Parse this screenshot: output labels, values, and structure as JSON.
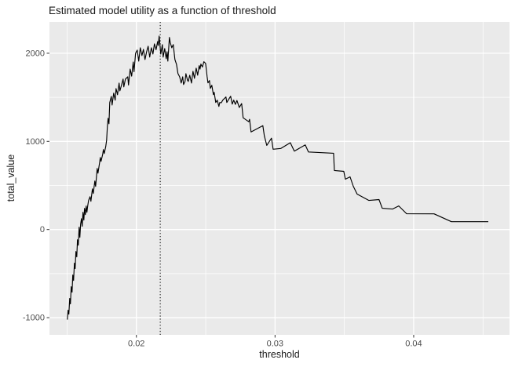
{
  "chart_data": {
    "type": "line",
    "title": "Estimated model utility as a function of threshold",
    "xlabel": "threshold",
    "ylabel": "total_value",
    "xlim": [
      0.01373,
      0.04691
    ],
    "ylim": [
      -1195,
      2355
    ],
    "x_major_ticks": [
      0.02,
      0.03,
      0.04
    ],
    "x_tick_labels": [
      "0.02",
      "0.03",
      "0.04"
    ],
    "x_minor_ticks": [
      0.015,
      0.025,
      0.035,
      0.045
    ],
    "y_major_ticks": [
      -1000,
      0,
      1000,
      2000
    ],
    "y_tick_labels": [
      "-1000",
      "0",
      "1000",
      "2000"
    ],
    "y_minor_ticks": [
      -500,
      500,
      1500
    ],
    "grid": true,
    "legend_position": "none",
    "vline": {
      "x": 0.02172,
      "style": "dotted"
    },
    "colors": {
      "panel_bg": "#EAEAEA",
      "grid": "#FFFFFF",
      "line": "#000000",
      "tick_mark": "#333333",
      "tick_label": "#4D4D4D",
      "title_text": "#1A1A1A"
    },
    "series": [
      {
        "name": "total_value",
        "points": [
          [
            0.01502,
            -1022
          ],
          [
            0.01507,
            -916
          ],
          [
            0.01513,
            -960
          ],
          [
            0.01519,
            -782
          ],
          [
            0.01524,
            -844
          ],
          [
            0.0153,
            -649
          ],
          [
            0.01536,
            -711
          ],
          [
            0.01541,
            -516
          ],
          [
            0.01547,
            -578
          ],
          [
            0.01553,
            -382
          ],
          [
            0.01558,
            -444
          ],
          [
            0.01564,
            -249
          ],
          [
            0.0157,
            -311
          ],
          [
            0.01575,
            -116
          ],
          [
            0.01581,
            -178
          ],
          [
            0.01587,
            27
          ],
          [
            0.01592,
            -89
          ],
          [
            0.01598,
            62
          ],
          [
            0.01604,
            124
          ],
          [
            0.01609,
            36
          ],
          [
            0.01615,
            196
          ],
          [
            0.01621,
            107
          ],
          [
            0.01626,
            240
          ],
          [
            0.01632,
            169
          ],
          [
            0.01638,
            267
          ],
          [
            0.01643,
            196
          ],
          [
            0.01649,
            267
          ],
          [
            0.01655,
            329
          ],
          [
            0.01666,
            373
          ],
          [
            0.01672,
            320
          ],
          [
            0.01683,
            462
          ],
          [
            0.01689,
            409
          ],
          [
            0.017,
            551
          ],
          [
            0.01706,
            489
          ],
          [
            0.01717,
            693
          ],
          [
            0.01723,
            640
          ],
          [
            0.01734,
            755
          ],
          [
            0.0174,
            818
          ],
          [
            0.01745,
            773
          ],
          [
            0.01757,
            853
          ],
          [
            0.01762,
            907
          ],
          [
            0.01768,
            862
          ],
          [
            0.01779,
            942
          ],
          [
            0.01785,
            1013
          ],
          [
            0.01791,
            1173
          ],
          [
            0.01796,
            1262
          ],
          [
            0.01802,
            1200
          ],
          [
            0.01808,
            1440
          ],
          [
            0.01819,
            1511
          ],
          [
            0.01825,
            1413
          ],
          [
            0.01836,
            1547
          ],
          [
            0.01847,
            1467
          ],
          [
            0.01853,
            1600
          ],
          [
            0.01864,
            1529
          ],
          [
            0.01875,
            1662
          ],
          [
            0.01881,
            1573
          ],
          [
            0.01892,
            1635
          ],
          [
            0.01904,
            1707
          ],
          [
            0.01909,
            1618
          ],
          [
            0.01921,
            1707
          ],
          [
            0.01938,
            1733
          ],
          [
            0.01943,
            1640
          ],
          [
            0.01955,
            1820
          ],
          [
            0.01966,
            1740
          ],
          [
            0.01977,
            1900
          ],
          [
            0.01983,
            1790
          ],
          [
            0.01994,
            2000
          ],
          [
            0.02006,
            2036
          ],
          [
            0.02017,
            1911
          ],
          [
            0.02028,
            2062
          ],
          [
            0.0204,
            1973
          ],
          [
            0.02051,
            2044
          ],
          [
            0.02062,
            1929
          ],
          [
            0.02074,
            2018
          ],
          [
            0.02085,
            2080
          ],
          [
            0.02096,
            1956
          ],
          [
            0.02108,
            2062
          ],
          [
            0.02119,
            1991
          ],
          [
            0.0213,
            2107
          ],
          [
            0.02142,
            2040
          ],
          [
            0.02153,
            2133
          ],
          [
            0.02158,
            2089
          ],
          [
            0.02164,
            2195
          ],
          [
            0.02176,
            1991
          ],
          [
            0.02187,
            2098
          ],
          [
            0.02193,
            1956
          ],
          [
            0.02204,
            2053
          ],
          [
            0.02215,
            1938
          ],
          [
            0.02221,
            2018
          ],
          [
            0.02227,
            1911
          ],
          [
            0.02238,
            2180
          ],
          [
            0.02244,
            2124
          ],
          [
            0.02255,
            2062
          ],
          [
            0.02266,
            2098
          ],
          [
            0.02278,
            1929
          ],
          [
            0.02289,
            1875
          ],
          [
            0.023,
            1769
          ],
          [
            0.02312,
            1733
          ],
          [
            0.02323,
            1662
          ],
          [
            0.02334,
            1733
          ],
          [
            0.0234,
            1645
          ],
          [
            0.02351,
            1680
          ],
          [
            0.02357,
            1769
          ],
          [
            0.02368,
            1698
          ],
          [
            0.02374,
            1680
          ],
          [
            0.02385,
            1751
          ],
          [
            0.02397,
            1662
          ],
          [
            0.02408,
            1795
          ],
          [
            0.02419,
            1715
          ],
          [
            0.02431,
            1831
          ],
          [
            0.02442,
            1751
          ],
          [
            0.02453,
            1859
          ],
          [
            0.02459,
            1820
          ],
          [
            0.02465,
            1877
          ],
          [
            0.02476,
            1843
          ],
          [
            0.02487,
            1904
          ],
          [
            0.02499,
            1884
          ],
          [
            0.02504,
            1824
          ],
          [
            0.0251,
            1735
          ],
          [
            0.02516,
            1664
          ],
          [
            0.02527,
            1690
          ],
          [
            0.02533,
            1601
          ],
          [
            0.02544,
            1637
          ],
          [
            0.02555,
            1530
          ],
          [
            0.02561,
            1557
          ],
          [
            0.02572,
            1441
          ],
          [
            0.02583,
            1468
          ],
          [
            0.02595,
            1397
          ],
          [
            0.02601,
            1441
          ],
          [
            0.02612,
            1438
          ],
          [
            0.02623,
            1468
          ],
          [
            0.02646,
            1504
          ],
          [
            0.02652,
            1441
          ],
          [
            0.02669,
            1486
          ],
          [
            0.0268,
            1512
          ],
          [
            0.02691,
            1423
          ],
          [
            0.02702,
            1468
          ],
          [
            0.02714,
            1420
          ],
          [
            0.02725,
            1464
          ],
          [
            0.02742,
            1384
          ],
          [
            0.02759,
            1429
          ],
          [
            0.0277,
            1268
          ],
          [
            0.0281,
            1223
          ],
          [
            0.02816,
            1250
          ],
          [
            0.02827,
            1107
          ],
          [
            0.02912,
            1179
          ],
          [
            0.02923,
            1063
          ],
          [
            0.0294,
            955
          ],
          [
            0.02974,
            1036
          ],
          [
            0.02986,
            911
          ],
          [
            0.03042,
            920
          ],
          [
            0.0311,
            985
          ],
          [
            0.03139,
            890
          ],
          [
            0.03218,
            960
          ],
          [
            0.03241,
            880
          ],
          [
            0.03422,
            866
          ],
          [
            0.03428,
            670
          ],
          [
            0.03496,
            660
          ],
          [
            0.03507,
            571
          ],
          [
            0.03541,
            598
          ],
          [
            0.03564,
            491
          ],
          [
            0.03592,
            402
          ],
          [
            0.03677,
            330
          ],
          [
            0.0375,
            340
          ],
          [
            0.03773,
            241
          ],
          [
            0.03847,
            232
          ],
          [
            0.03892,
            268
          ],
          [
            0.03949,
            179
          ],
          [
            0.04147,
            178
          ],
          [
            0.04272,
            89
          ],
          [
            0.04538,
            89
          ]
        ]
      }
    ]
  }
}
